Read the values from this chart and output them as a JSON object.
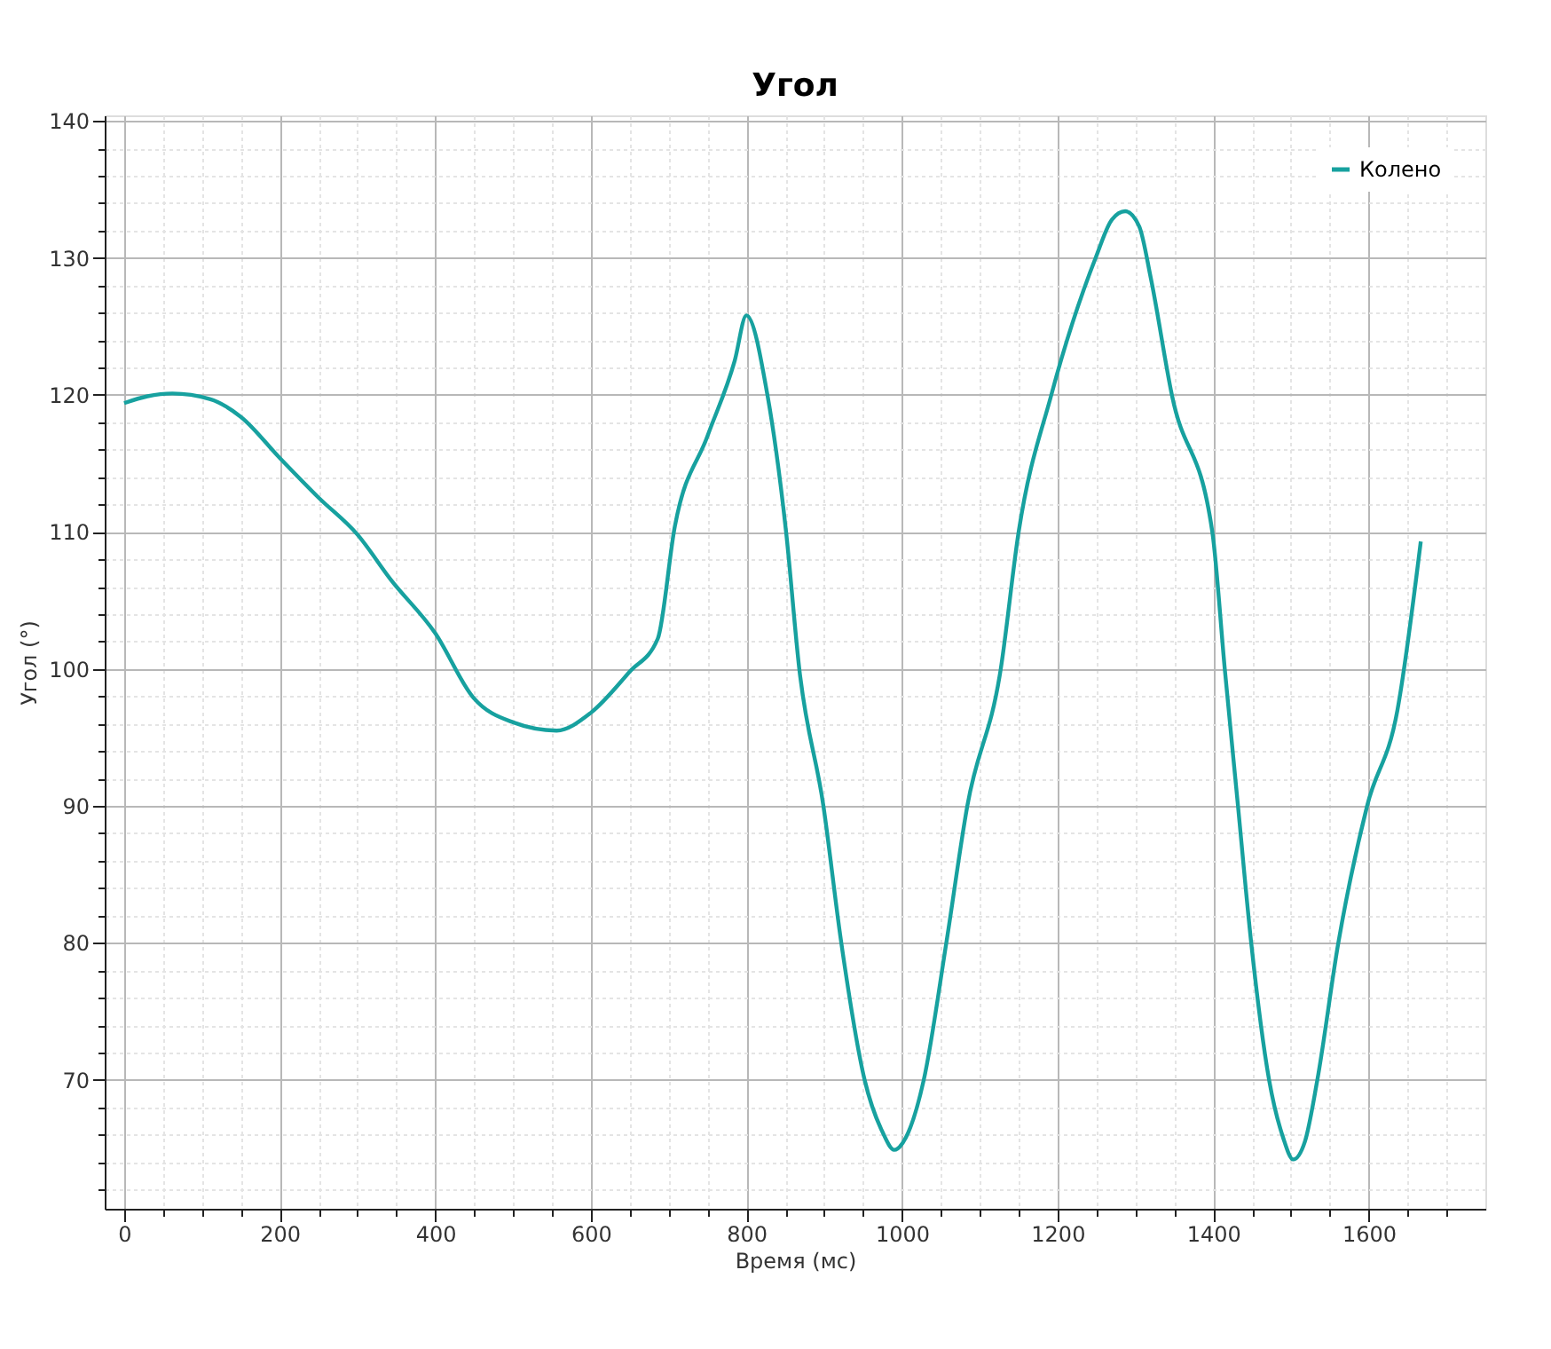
{
  "chart_data": {
    "type": "line",
    "title": "Угол",
    "xlabel": "Время (мс)",
    "ylabel": "Угол (°)",
    "xlim": [
      -25,
      1750
    ],
    "ylim": [
      60.6,
      140.4
    ],
    "xticks": [
      0,
      {
        "value": 50,
        "label": null
      },
      {
        "value": 100,
        "label": null
      },
      {
        "value": 150,
        "label": null
      },
      200,
      {
        "value": 250,
        "label": null
      },
      {
        "value": 300,
        "label": null
      },
      {
        "value": 350,
        "label": null
      },
      400,
      {
        "value": 450,
        "label": null
      },
      {
        "value": 500,
        "label": null
      },
      {
        "value": 550,
        "label": null
      },
      600,
      {
        "value": 650,
        "label": null
      },
      {
        "value": 700,
        "label": null
      },
      {
        "value": 750,
        "label": null
      },
      800,
      {
        "value": 850,
        "label": null
      },
      {
        "value": 900,
        "label": null
      },
      {
        "value": 950,
        "label": null
      },
      1000,
      {
        "value": 1050,
        "label": null
      },
      {
        "value": 1100,
        "label": null
      },
      {
        "value": 1150,
        "label": null
      },
      1200,
      {
        "value": 1250,
        "label": null
      },
      {
        "value": 1300,
        "label": null
      },
      {
        "value": 1350,
        "label": null
      },
      1400,
      {
        "value": 1450,
        "label": null
      },
      {
        "value": 1500,
        "label": null
      },
      {
        "value": 1550,
        "label": null
      },
      1600,
      {
        "value": 1650,
        "label": null
      },
      {
        "value": 1700,
        "label": null
      }
    ],
    "yticks": [
      {
        "value": 62,
        "label": null
      },
      {
        "value": 64,
        "label": null
      },
      {
        "value": 66,
        "label": null
      },
      {
        "value": 68,
        "label": null
      },
      70,
      {
        "value": 72,
        "label": null
      },
      {
        "value": 74,
        "label": null
      },
      {
        "value": 76,
        "label": null
      },
      {
        "value": 78,
        "label": null
      },
      80,
      {
        "value": 82,
        "label": null
      },
      {
        "value": 84,
        "label": null
      },
      {
        "value": 86,
        "label": null
      },
      {
        "value": 88,
        "label": null
      },
      90,
      {
        "value": 92,
        "label": null
      },
      {
        "value": 94,
        "label": null
      },
      {
        "value": 96,
        "label": null
      },
      {
        "value": 98,
        "label": null
      },
      100,
      {
        "value": 102,
        "label": null
      },
      {
        "value": 104,
        "label": null
      },
      {
        "value": 106,
        "label": null
      },
      {
        "value": 108,
        "label": null
      },
      110,
      {
        "value": 112,
        "label": null
      },
      {
        "value": 114,
        "label": null
      },
      {
        "value": 116,
        "label": null
      },
      {
        "value": 118,
        "label": null
      },
      120,
      {
        "value": 122,
        "label": null
      },
      {
        "value": 124,
        "label": null
      },
      {
        "value": 126,
        "label": null
      },
      {
        "value": 128,
        "label": null
      },
      130,
      {
        "value": 132,
        "label": null
      },
      {
        "value": 134,
        "label": null
      },
      {
        "value": 136,
        "label": null
      },
      {
        "value": 138,
        "label": null
      },
      140
    ],
    "grid": true,
    "legend": "top right",
    "marker": "none",
    "line_style": "solid",
    "series": [
      {
        "name": "Колено",
        "color": "#17a19f",
        "x": [
          0,
          30,
          62,
          110,
          150,
          200,
          250,
          300,
          343,
          400,
          449,
          500,
          556,
          600,
          650,
          686,
          708,
          750,
          785,
          800,
          827,
          851,
          868,
          899,
          922,
          952,
          975,
          990,
          1005,
          1028,
          1057,
          1084,
          1127,
          1150,
          1192,
          1249,
          1270,
          1287,
          1305,
          1320,
          1347,
          1399,
          1415,
          1432,
          1449,
          1472,
          1490,
          1503,
          1518,
          1534,
          1561,
          1598,
          1637,
          1667
        ],
        "values": [
          119.4,
          119.9,
          120.1,
          119.7,
          118.4,
          115.4,
          112.5,
          109.8,
          106.5,
          102.6,
          97.9,
          96.1,
          95.5,
          96.8,
          99.8,
          102.2,
          110.4,
          117,
          122.5,
          125.8,
          120,
          110,
          100,
          90,
          80,
          70,
          66.2,
          64.9,
          65.8,
          70,
          80,
          90,
          100,
          110,
          120,
          130,
          132.8,
          133.4,
          132.3,
          128.5,
          120,
          110,
          100,
          90,
          80,
          70,
          65.8,
          64.2,
          65.5,
          70,
          80,
          90,
          97,
          109.3
        ]
      }
    ]
  }
}
